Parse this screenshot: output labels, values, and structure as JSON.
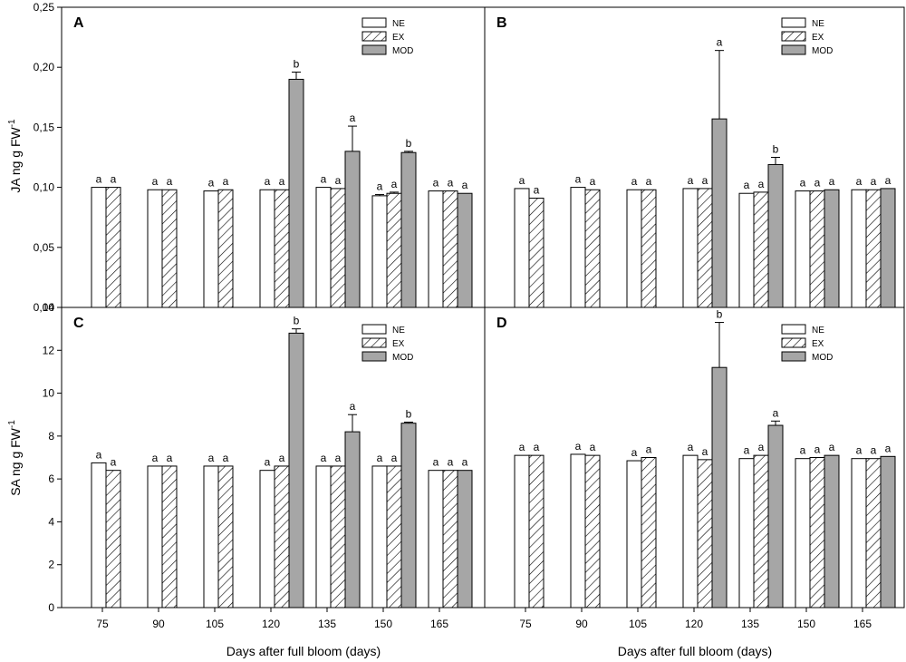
{
  "chart_data": {
    "type": "bar",
    "categories": [
      "75",
      "90",
      "105",
      "120",
      "135",
      "150",
      "165"
    ],
    "xlabel": "Days after full bloom (days)",
    "legend": {
      "labels": [
        "NE",
        "EX",
        "MOD"
      ],
      "placement": "top-right"
    },
    "series_styles": {
      "NE": "white",
      "EX": "hatched",
      "MOD": "#a6a6a6"
    },
    "rows": [
      {
        "ylabel_main": "JA ng g FW",
        "ylabel_sup": "-1",
        "ylim": [
          0,
          0.25
        ],
        "ticks": [
          0,
          0.05,
          0.1,
          0.15,
          0.2,
          0.25
        ],
        "tick_labels": [
          "0,00",
          "0,05",
          "0,10",
          "0,15",
          "0,20",
          "0,25"
        ]
      },
      {
        "ylabel_main": "SA ng g FW",
        "ylabel_sup": "-1",
        "ylim": [
          0,
          14
        ],
        "ticks": [
          0,
          2,
          4,
          6,
          8,
          10,
          12,
          14
        ],
        "tick_labels": [
          "0",
          "2",
          "4",
          "6",
          "8",
          "10",
          "12",
          "14"
        ]
      }
    ],
    "panels": [
      {
        "label": "A",
        "series": [
          {
            "name": "NE",
            "values": [
              0.1,
              0.098,
              0.097,
              0.098,
              0.1,
              0.093,
              0.097
            ],
            "errors": [
              0,
              0,
              0,
              0,
              0,
              0.001,
              0
            ],
            "letters": [
              "a",
              "a",
              "a",
              "a",
              "a",
              "a",
              "a"
            ]
          },
          {
            "name": "EX",
            "values": [
              0.1,
              0.098,
              0.098,
              0.098,
              0.099,
              0.095,
              0.097
            ],
            "errors": [
              0,
              0,
              0,
              0,
              0,
              0.001,
              0
            ],
            "letters": [
              "a",
              "a",
              "a",
              "a",
              "a",
              "a",
              "a"
            ]
          },
          {
            "name": "MOD",
            "values": [
              null,
              null,
              null,
              0.19,
              0.13,
              0.129,
              0.095
            ],
            "errors": [
              0,
              0,
              0,
              0.006,
              0.021,
              0.001,
              0
            ],
            "letters": [
              "",
              "",
              "",
              "b",
              "a",
              "b",
              "a"
            ]
          }
        ]
      },
      {
        "label": "B",
        "series": [
          {
            "name": "NE",
            "values": [
              0.099,
              0.1,
              0.098,
              0.099,
              0.095,
              0.097,
              0.098
            ],
            "errors": [
              0,
              0,
              0,
              0,
              0,
              0,
              0
            ],
            "letters": [
              "a",
              "a",
              "a",
              "a",
              "a",
              "a",
              "a"
            ]
          },
          {
            "name": "EX",
            "values": [
              0.091,
              0.098,
              0.098,
              0.099,
              0.096,
              0.097,
              0.098
            ],
            "errors": [
              0,
              0,
              0,
              0,
              0,
              0,
              0
            ],
            "letters": [
              "a",
              "a",
              "a",
              "a",
              "a",
              "a",
              "a"
            ]
          },
          {
            "name": "MOD",
            "values": [
              null,
              null,
              null,
              0.157,
              0.119,
              0.098,
              0.099
            ],
            "errors": [
              0,
              0,
              0,
              0.057,
              0.006,
              0,
              0
            ],
            "letters": [
              "",
              "",
              "",
              "a",
              "b",
              "a",
              "a"
            ]
          }
        ]
      },
      {
        "label": "C",
        "series": [
          {
            "name": "NE",
            "values": [
              6.75,
              6.6,
              6.6,
              6.4,
              6.6,
              6.6,
              6.4
            ],
            "errors": [
              0,
              0,
              0,
              0,
              0,
              0,
              0
            ],
            "letters": [
              "a",
              "a",
              "a",
              "a",
              "a",
              "a",
              "a"
            ]
          },
          {
            "name": "EX",
            "values": [
              6.4,
              6.6,
              6.6,
              6.6,
              6.6,
              6.6,
              6.4
            ],
            "errors": [
              0,
              0,
              0,
              0,
              0,
              0,
              0
            ],
            "letters": [
              "a",
              "a",
              "a",
              "a",
              "a",
              "a",
              "a"
            ]
          },
          {
            "name": "MOD",
            "values": [
              null,
              null,
              null,
              12.8,
              8.2,
              8.6,
              6.4
            ],
            "errors": [
              0,
              0,
              0,
              0.2,
              0.8,
              0.05,
              0
            ],
            "letters": [
              "",
              "",
              "",
              "b",
              "a",
              "b",
              "a"
            ]
          }
        ]
      },
      {
        "label": "D",
        "series": [
          {
            "name": "NE",
            "values": [
              7.1,
              7.15,
              6.85,
              7.1,
              6.95,
              6.95,
              6.95
            ],
            "errors": [
              0,
              0,
              0,
              0,
              0,
              0,
              0
            ],
            "letters": [
              "a",
              "a",
              "a",
              "a",
              "a",
              "a",
              "a"
            ]
          },
          {
            "name": "EX",
            "values": [
              7.1,
              7.1,
              7.0,
              6.9,
              7.1,
              7.0,
              6.95
            ],
            "errors": [
              0,
              0,
              0,
              0,
              0,
              0,
              0
            ],
            "letters": [
              "a",
              "a",
              "a",
              "a",
              "a",
              "a",
              "a"
            ]
          },
          {
            "name": "MOD",
            "values": [
              null,
              null,
              null,
              11.2,
              8.5,
              7.1,
              7.05
            ],
            "errors": [
              0,
              0,
              0,
              2.1,
              0.2,
              0,
              0
            ],
            "letters": [
              "",
              "",
              "",
              "b",
              "a",
              "a",
              "a"
            ]
          }
        ]
      }
    ]
  }
}
